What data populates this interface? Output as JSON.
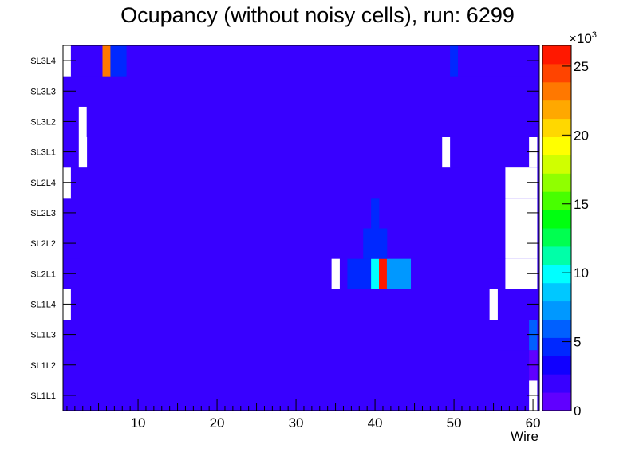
{
  "chart_data": {
    "type": "heatmap",
    "title": "Ocupancy (without noisy cells), run: 6299",
    "xlabel": "Wire",
    "ylabel": "",
    "x_range": [
      0,
      60
    ],
    "x_ticks": [
      10,
      20,
      30,
      40,
      50,
      60
    ],
    "x_tick_labels": [
      "10",
      "20",
      "30",
      "40",
      "50",
      "60"
    ],
    "y_categories": [
      "SL1L1",
      "SL1L2",
      "SL1L3",
      "SL1L4",
      "SL2L1",
      "SL2L2",
      "SL2L3",
      "SL2L4",
      "SL3L1",
      "SL3L2",
      "SL3L3",
      "SL3L4"
    ],
    "colorbar": {
      "range": [
        0,
        26500
      ],
      "ticks": [
        0,
        5,
        10,
        15,
        20,
        25
      ],
      "tick_labels": [
        "0",
        "5",
        "10",
        "15",
        "20",
        "25"
      ],
      "exponent_label": "×10",
      "exponent_power": "3",
      "palette": [
        "#6000ff",
        "#3800ff",
        "#1000ff",
        "#0028ff",
        "#0060ff",
        "#0098ff",
        "#00c8ff",
        "#00ffff",
        "#00ffa8",
        "#00ff50",
        "#00ff10",
        "#48ff00",
        "#90ff00",
        "#d0ff00",
        "#ffff00",
        "#ffd800",
        "#ffa800",
        "#ff7800",
        "#ff4400",
        "#ff1800"
      ]
    },
    "rows": [
      {
        "layer": "SL1L1",
        "default": 2500,
        "cells": [
          {
            "from": 1,
            "to": 3,
            "value": 1500
          },
          {
            "from": 55,
            "to": 59,
            "value": 1500
          },
          {
            "from": 60,
            "to": 60,
            "value": 0
          }
        ]
      },
      {
        "layer": "SL1L2",
        "default": 2500,
        "cells": [
          {
            "from": 1,
            "to": 5,
            "value": 1500
          },
          {
            "from": 48,
            "to": 49,
            "value": 1500
          },
          {
            "from": 51,
            "to": 59,
            "value": 1500
          },
          {
            "from": 60,
            "to": 60,
            "value": 1000
          }
        ]
      },
      {
        "layer": "SL1L3",
        "default": 2500,
        "cells": [
          {
            "from": 1,
            "to": 2,
            "value": 1500
          },
          {
            "from": 56,
            "to": 56,
            "value": 1500
          },
          {
            "from": 57,
            "to": 59,
            "value": 1500
          },
          {
            "from": 60,
            "to": 60,
            "value": 6500
          }
        ]
      },
      {
        "layer": "SL1L4",
        "default": 2500,
        "cells": [
          {
            "from": 1,
            "to": 1,
            "value": 0
          },
          {
            "from": 2,
            "to": 3,
            "value": 1500
          },
          {
            "from": 55,
            "to": 55,
            "value": 0
          },
          {
            "from": 57,
            "to": 60,
            "value": 1500
          }
        ]
      },
      {
        "layer": "SL2L1",
        "default": 2500,
        "cells": [
          {
            "from": 1,
            "to": 1,
            "value": 1500
          },
          {
            "from": 35,
            "to": 35,
            "value": 0
          },
          {
            "from": 37,
            "to": 39,
            "value": 4000
          },
          {
            "from": 40,
            "to": 40,
            "value": 10000
          },
          {
            "from": 41,
            "to": 41,
            "value": 26000
          },
          {
            "from": 42,
            "to": 44,
            "value": 7000
          },
          {
            "from": 55,
            "to": 56,
            "value": 1500
          },
          {
            "from": 57,
            "to": 60,
            "value": 0
          }
        ]
      },
      {
        "layer": "SL2L2",
        "default": 2500,
        "cells": [
          {
            "from": 1,
            "to": 2,
            "value": 1500
          },
          {
            "from": 39,
            "to": 41,
            "value": 4000
          },
          {
            "from": 56,
            "to": 56,
            "value": 1500
          },
          {
            "from": 57,
            "to": 60,
            "value": 0
          }
        ]
      },
      {
        "layer": "SL2L3",
        "default": 2500,
        "cells": [
          {
            "from": 1,
            "to": 1,
            "value": 1500
          },
          {
            "from": 40,
            "to": 40,
            "value": 4000
          },
          {
            "from": 55,
            "to": 56,
            "value": 1500
          },
          {
            "from": 57,
            "to": 60,
            "value": 0
          }
        ]
      },
      {
        "layer": "SL2L4",
        "default": 2500,
        "cells": [
          {
            "from": 1,
            "to": 1,
            "value": 0
          },
          {
            "from": 2,
            "to": 2,
            "value": 1500
          },
          {
            "from": 56,
            "to": 56,
            "value": 1500
          },
          {
            "from": 57,
            "to": 60,
            "value": 0
          }
        ]
      },
      {
        "layer": "SL3L1",
        "default": 2500,
        "cells": [
          {
            "from": 1,
            "to": 1,
            "value": 1500
          },
          {
            "from": 3,
            "to": 3,
            "value": 0
          },
          {
            "from": 49,
            "to": 49,
            "value": 0
          },
          {
            "from": 50,
            "to": 50,
            "value": 1500
          },
          {
            "from": 60,
            "to": 60,
            "value": 0
          }
        ]
      },
      {
        "layer": "SL3L2",
        "default": 2500,
        "cells": [
          {
            "from": 1,
            "to": 1,
            "value": 1500
          },
          {
            "from": 2,
            "to": 2,
            "value": 2500
          },
          {
            "from": 3,
            "to": 3,
            "value": 0
          },
          {
            "from": 4,
            "to": 4,
            "value": 2500
          },
          {
            "from": 51,
            "to": 51,
            "value": 1500
          },
          {
            "from": 60,
            "to": 60,
            "value": 1500
          }
        ]
      },
      {
        "layer": "SL3L3",
        "default": 2500,
        "cells": [
          {
            "from": 1,
            "to": 3,
            "value": 1500
          },
          {
            "from": 45,
            "to": 45,
            "value": 1500
          },
          {
            "from": 50,
            "to": 51,
            "value": 1500
          },
          {
            "from": 60,
            "to": 60,
            "value": 1500
          }
        ]
      },
      {
        "layer": "SL3L4",
        "default": 2500,
        "cells": [
          {
            "from": 1,
            "to": 1,
            "value": 0
          },
          {
            "from": 2,
            "to": 2,
            "value": 2500
          },
          {
            "from": 3,
            "to": 5,
            "value": 1500
          },
          {
            "from": 6,
            "to": 6,
            "value": 23500
          },
          {
            "from": 7,
            "to": 8,
            "value": 4000
          },
          {
            "from": 50,
            "to": 50,
            "value": 4000
          },
          {
            "from": 51,
            "to": 60,
            "value": 2500
          }
        ]
      }
    ]
  }
}
